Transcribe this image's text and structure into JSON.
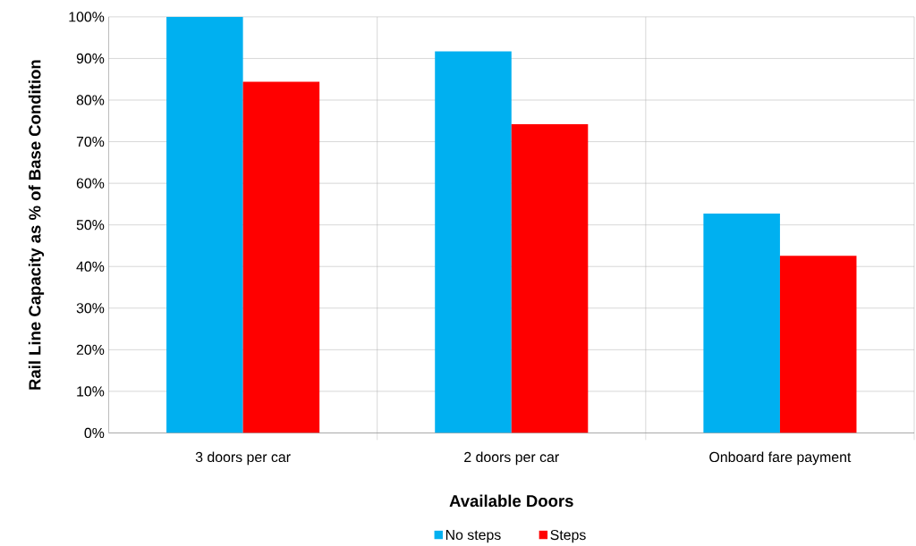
{
  "chart_data": {
    "type": "bar",
    "xlabel": "Available Doors",
    "ylabel": "Rail Line Capacity as % of Base Condition",
    "categories": [
      "3 doors per car",
      "2 doors per car",
      "Onboard fare payment"
    ],
    "series": [
      {
        "name": "No steps",
        "color": "#00b0f0",
        "values": [
          100,
          91.7,
          52.7
        ]
      },
      {
        "name": "Steps",
        "color": "#ff0000",
        "values": [
          84.4,
          74.2,
          42.6
        ]
      }
    ],
    "ylim": [
      0,
      100
    ],
    "yticks": [
      {
        "value": 0,
        "label": "0%"
      },
      {
        "value": 10,
        "label": "10%"
      },
      {
        "value": 20,
        "label": "20%"
      },
      {
        "value": 30,
        "label": "30%"
      },
      {
        "value": 40,
        "label": "40%"
      },
      {
        "value": 50,
        "label": "50%"
      },
      {
        "value": 60,
        "label": "60%"
      },
      {
        "value": 70,
        "label": "70%"
      },
      {
        "value": 80,
        "label": "80%"
      },
      {
        "value": 90,
        "label": "90%"
      },
      {
        "value": 100,
        "label": "100%"
      }
    ],
    "grid": true,
    "legend": "bottom"
  }
}
